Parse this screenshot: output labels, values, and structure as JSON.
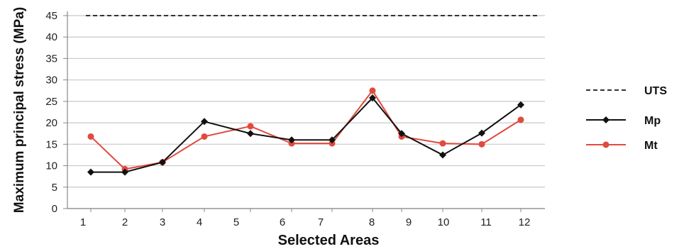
{
  "chart_data": {
    "type": "line",
    "xlabel": "Selected Areas",
    "ylabel": "Maximum principal stress (MPa)",
    "categories": [
      "1",
      "2",
      "3",
      "4",
      "5",
      "6",
      "7",
      "8",
      "9",
      "10",
      "11",
      "12"
    ],
    "ylim": [
      0,
      45
    ],
    "yticks": [
      0,
      5,
      10,
      15,
      20,
      25,
      30,
      35,
      40,
      45
    ],
    "grid": true,
    "legend_position": "right",
    "reference_line": {
      "name": "UTS",
      "value": 45,
      "style": "dashed",
      "color": "#333333"
    },
    "series": [
      {
        "name": "Mp",
        "color": "#111111",
        "values": [
          8.5,
          8.5,
          10.8,
          20.3,
          17.5,
          16.0,
          16.0,
          25.8,
          17.5,
          12.5,
          17.6,
          24.2
        ]
      },
      {
        "name": "Mt",
        "color": "#e04a3f",
        "values": [
          16.8,
          9.2,
          10.8,
          16.8,
          19.2,
          15.2,
          15.2,
          27.5,
          16.8,
          15.2,
          15.0,
          20.7
        ]
      }
    ]
  }
}
